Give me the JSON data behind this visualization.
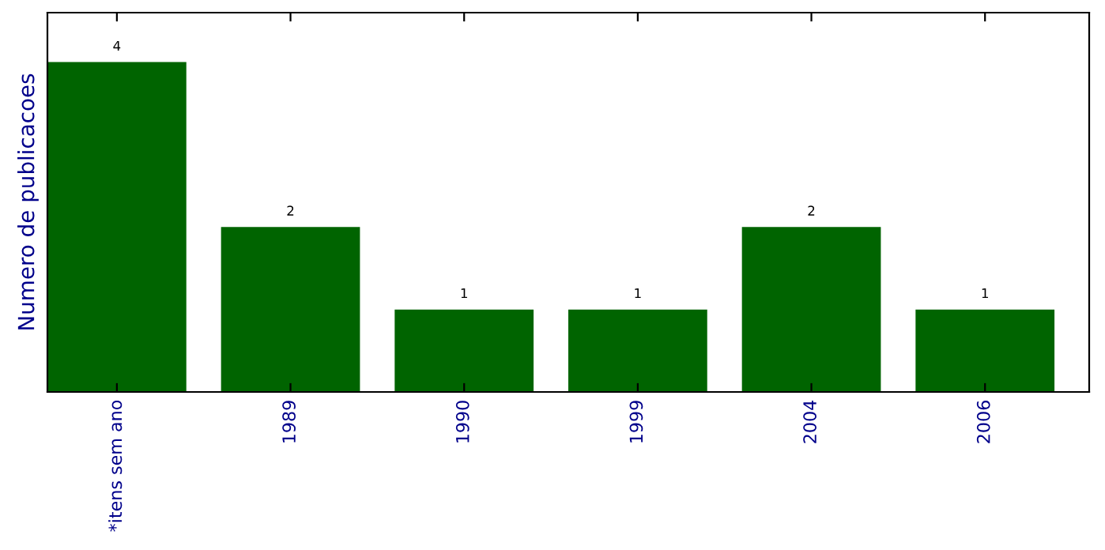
{
  "chart_data": {
    "type": "bar",
    "ylabel": "Numero de publicacoes",
    "categories": [
      "*itens sem ano",
      "1989",
      "1990",
      "1999",
      "2004",
      "2006"
    ],
    "values": [
      4,
      2,
      1,
      1,
      2,
      1
    ],
    "color": "#006400",
    "ylim": [
      0,
      4.6
    ],
    "tick_labels": "x",
    "data_labels": true,
    "grid": false
  }
}
